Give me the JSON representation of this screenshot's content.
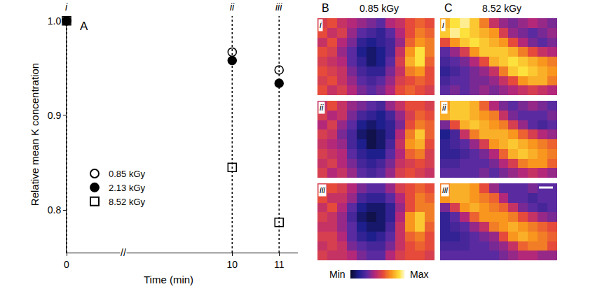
{
  "chart_data": [
    {
      "type": "scatter",
      "label": "A",
      "x_label": "Time (min)",
      "y_label": "Relative mean K concentration",
      "x": [
        0,
        10,
        11
      ],
      "point_labels": [
        "i",
        "ii",
        "iii"
      ],
      "series": [
        {
          "name": "0.85 kGy",
          "color": "#000000",
          "marker": "circle-open",
          "values": [
            1.0,
            0.967,
            0.948
          ]
        },
        {
          "name": "2.13 kGy",
          "color": "#000000",
          "marker": "circle",
          "values": [
            1.0,
            0.958,
            0.934
          ]
        },
        {
          "name": "8.52 kGy",
          "color": "#000000",
          "marker": "square-open",
          "values": [
            1.0,
            0.845,
            0.787
          ]
        }
      ],
      "xlim": [
        [
          0,
          1.2
        ],
        [
          7.7,
          11.4
        ]
      ],
      "xticks": [
        0,
        10,
        11
      ],
      "axis_break": "//",
      "ylim": [
        0.755,
        1.005
      ],
      "yticks": [
        {
          "value": 1.0,
          "label": "1.0"
        },
        0.9,
        0.8
      ],
      "legend": "lower left",
      "grid": false
    },
    {
      "type": "heatmap",
      "label": "B",
      "title": "0.85 kGy",
      "tick_labels": false,
      "color_range": [
        0,
        1
      ],
      "panels": [
        {
          "label": "i",
          "cells": [
            [
              0.55,
              0.6,
              0.5,
              0.45,
              0.4,
              0.35,
              0.3,
              0.45,
              0.5,
              0.6,
              0.65,
              0.6
            ],
            [
              0.6,
              0.5,
              0.55,
              0.4,
              0.3,
              0.25,
              0.2,
              0.3,
              0.45,
              0.6,
              0.7,
              0.65
            ],
            [
              0.5,
              0.6,
              0.45,
              0.35,
              0.2,
              0.15,
              0.2,
              0.25,
              0.4,
              0.65,
              0.75,
              0.7
            ],
            [
              0.6,
              0.55,
              0.4,
              0.3,
              0.15,
              0.1,
              0.15,
              0.25,
              0.5,
              0.75,
              0.9,
              0.7
            ],
            [
              0.55,
              0.5,
              0.45,
              0.3,
              0.2,
              0.1,
              0.15,
              0.3,
              0.55,
              0.8,
              0.9,
              0.65
            ],
            [
              0.6,
              0.55,
              0.5,
              0.35,
              0.25,
              0.2,
              0.2,
              0.35,
              0.5,
              0.7,
              0.75,
              0.6
            ],
            [
              0.55,
              0.6,
              0.5,
              0.4,
              0.3,
              0.25,
              0.3,
              0.4,
              0.55,
              0.6,
              0.65,
              0.6
            ],
            [
              0.6,
              0.5,
              0.55,
              0.45,
              0.35,
              0.3,
              0.35,
              0.45,
              0.6,
              0.65,
              0.6,
              0.55
            ]
          ]
        },
        {
          "label": "ii",
          "cells": [
            [
              0.5,
              0.6,
              0.5,
              0.4,
              0.35,
              0.3,
              0.25,
              0.4,
              0.5,
              0.6,
              0.6,
              0.55
            ],
            [
              0.55,
              0.45,
              0.5,
              0.35,
              0.25,
              0.2,
              0.15,
              0.25,
              0.4,
              0.55,
              0.65,
              0.6
            ],
            [
              0.45,
              0.55,
              0.4,
              0.3,
              0.15,
              0.1,
              0.15,
              0.2,
              0.35,
              0.6,
              0.7,
              0.65
            ],
            [
              0.55,
              0.5,
              0.35,
              0.25,
              0.1,
              0.05,
              0.1,
              0.2,
              0.45,
              0.7,
              0.85,
              0.65
            ],
            [
              0.5,
              0.45,
              0.4,
              0.25,
              0.15,
              0.05,
              0.1,
              0.25,
              0.5,
              0.75,
              0.8,
              0.6
            ],
            [
              0.55,
              0.5,
              0.45,
              0.3,
              0.2,
              0.15,
              0.15,
              0.3,
              0.45,
              0.65,
              0.7,
              0.55
            ],
            [
              0.5,
              0.55,
              0.45,
              0.35,
              0.25,
              0.2,
              0.25,
              0.35,
              0.5,
              0.55,
              0.6,
              0.55
            ],
            [
              0.55,
              0.45,
              0.5,
              0.4,
              0.3,
              0.25,
              0.3,
              0.4,
              0.55,
              0.6,
              0.55,
              0.5
            ]
          ]
        },
        {
          "label": "iii",
          "cells": [
            [
              0.55,
              0.6,
              0.55,
              0.45,
              0.35,
              0.3,
              0.3,
              0.4,
              0.55,
              0.6,
              0.65,
              0.6
            ],
            [
              0.6,
              0.5,
              0.5,
              0.4,
              0.25,
              0.2,
              0.2,
              0.3,
              0.45,
              0.6,
              0.7,
              0.65
            ],
            [
              0.5,
              0.6,
              0.45,
              0.3,
              0.15,
              0.1,
              0.1,
              0.2,
              0.4,
              0.6,
              0.7,
              0.7
            ],
            [
              0.55,
              0.5,
              0.4,
              0.25,
              0.1,
              0.05,
              0.1,
              0.2,
              0.45,
              0.75,
              0.85,
              0.7
            ],
            [
              0.5,
              0.5,
              0.4,
              0.3,
              0.15,
              0.1,
              0.1,
              0.25,
              0.5,
              0.75,
              0.85,
              0.65
            ],
            [
              0.55,
              0.55,
              0.45,
              0.3,
              0.2,
              0.15,
              0.2,
              0.3,
              0.5,
              0.65,
              0.7,
              0.6
            ],
            [
              0.5,
              0.55,
              0.5,
              0.35,
              0.3,
              0.25,
              0.25,
              0.35,
              0.5,
              0.6,
              0.65,
              0.6
            ],
            [
              0.55,
              0.5,
              0.5,
              0.45,
              0.35,
              0.3,
              0.3,
              0.45,
              0.55,
              0.6,
              0.6,
              0.55
            ]
          ]
        }
      ]
    },
    {
      "type": "heatmap",
      "label": "C",
      "title": "8.52 kGy",
      "tick_labels": false,
      "color_range": [
        0,
        1
      ],
      "panels": [
        {
          "label": "i",
          "cells": [
            [
              0.8,
              0.9,
              0.95,
              0.85,
              0.7,
              0.5,
              0.4,
              0.35,
              0.4,
              0.45,
              0.4,
              0.35
            ],
            [
              0.85,
              0.95,
              0.9,
              0.85,
              0.8,
              0.75,
              0.55,
              0.4,
              0.35,
              0.3,
              0.35,
              0.4
            ],
            [
              0.6,
              0.75,
              0.85,
              0.9,
              0.85,
              0.8,
              0.75,
              0.6,
              0.45,
              0.35,
              0.3,
              0.35
            ],
            [
              0.3,
              0.4,
              0.55,
              0.75,
              0.85,
              0.85,
              0.85,
              0.8,
              0.7,
              0.6,
              0.5,
              0.45
            ],
            [
              0.25,
              0.3,
              0.35,
              0.45,
              0.6,
              0.8,
              0.85,
              0.9,
              0.85,
              0.8,
              0.75,
              0.7
            ],
            [
              0.2,
              0.25,
              0.3,
              0.35,
              0.4,
              0.5,
              0.7,
              0.85,
              0.9,
              0.85,
              0.8,
              0.75
            ],
            [
              0.25,
              0.3,
              0.3,
              0.35,
              0.35,
              0.4,
              0.5,
              0.6,
              0.75,
              0.8,
              0.8,
              0.7
            ],
            [
              0.3,
              0.35,
              0.3,
              0.35,
              0.4,
              0.35,
              0.4,
              0.45,
              0.5,
              0.55,
              0.5,
              0.45
            ]
          ]
        },
        {
          "label": "ii",
          "cells": [
            [
              0.75,
              0.85,
              0.85,
              0.8,
              0.65,
              0.45,
              0.35,
              0.3,
              0.35,
              0.4,
              0.35,
              0.3
            ],
            [
              0.8,
              0.85,
              0.85,
              0.8,
              0.75,
              0.7,
              0.5,
              0.35,
              0.3,
              0.3,
              0.3,
              0.35
            ],
            [
              0.35,
              0.6,
              0.8,
              0.85,
              0.8,
              0.75,
              0.7,
              0.55,
              0.4,
              0.3,
              0.25,
              0.3
            ],
            [
              0.15,
              0.25,
              0.5,
              0.7,
              0.8,
              0.8,
              0.8,
              0.75,
              0.65,
              0.55,
              0.45,
              0.4
            ],
            [
              0.2,
              0.25,
              0.3,
              0.4,
              0.55,
              0.75,
              0.8,
              0.85,
              0.8,
              0.75,
              0.7,
              0.65
            ],
            [
              0.2,
              0.2,
              0.25,
              0.3,
              0.35,
              0.45,
              0.65,
              0.8,
              0.85,
              0.8,
              0.75,
              0.7
            ],
            [
              0.25,
              0.25,
              0.3,
              0.3,
              0.3,
              0.35,
              0.45,
              0.55,
              0.7,
              0.75,
              0.75,
              0.65
            ],
            [
              0.3,
              0.3,
              0.3,
              0.3,
              0.35,
              0.3,
              0.35,
              0.4,
              0.45,
              0.5,
              0.45,
              0.4
            ]
          ]
        },
        {
          "label": "iii",
          "cells": [
            [
              0.7,
              0.8,
              0.8,
              0.75,
              0.6,
              0.4,
              0.3,
              0.3,
              0.3,
              0.35,
              0.3,
              0.3
            ],
            [
              0.75,
              0.8,
              0.8,
              0.75,
              0.7,
              0.65,
              0.45,
              0.3,
              0.3,
              0.25,
              0.3,
              0.3
            ],
            [
              0.35,
              0.55,
              0.75,
              0.8,
              0.75,
              0.7,
              0.65,
              0.5,
              0.35,
              0.3,
              0.25,
              0.3
            ],
            [
              0.2,
              0.3,
              0.45,
              0.65,
              0.75,
              0.75,
              0.75,
              0.7,
              0.6,
              0.5,
              0.4,
              0.35
            ],
            [
              0.2,
              0.25,
              0.3,
              0.4,
              0.5,
              0.7,
              0.75,
              0.8,
              0.75,
              0.7,
              0.65,
              0.6
            ],
            [
              0.2,
              0.2,
              0.25,
              0.3,
              0.35,
              0.4,
              0.6,
              0.75,
              0.8,
              0.75,
              0.7,
              0.65
            ],
            [
              0.25,
              0.25,
              0.25,
              0.3,
              0.3,
              0.35,
              0.4,
              0.5,
              0.65,
              0.7,
              0.7,
              0.6
            ],
            [
              0.3,
              0.3,
              0.3,
              0.3,
              0.3,
              0.3,
              0.35,
              0.4,
              0.45,
              0.45,
              0.4,
              0.4
            ]
          ]
        }
      ]
    },
    {
      "type": "colorbar",
      "range": [
        0,
        1
      ],
      "ticks": [
        {
          "value": 0,
          "label": "Min"
        },
        {
          "value": 1,
          "label": "Max"
        }
      ]
    }
  ]
}
